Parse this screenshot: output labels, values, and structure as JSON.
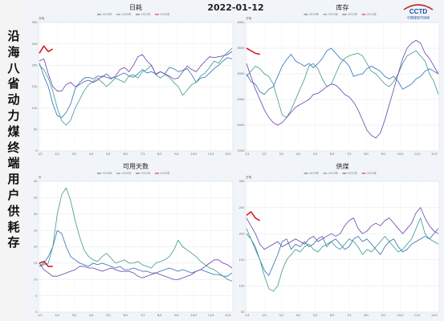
{
  "side_title": "沿海八省动力煤终端用户供耗存",
  "date": "2022-01-12",
  "logo": {
    "text": "CCTD",
    "subtext": "中国煤炭市场网"
  },
  "colors": {
    "2019": "#2f6fb5",
    "2020": "#3a9a8a",
    "2021": "#6a3fa8",
    "2022": "#d62020"
  },
  "chart_data": [
    {
      "type": "line",
      "title": "日耗",
      "unit": "万吨",
      "x_ticks": [
        "1/1",
        "2/1",
        "3/1",
        "4/1",
        "5/1",
        "6/1",
        "7/1",
        "8/1",
        "9/1",
        "10/1",
        "11/1",
        "12/1"
      ],
      "y_ticks": [
        "0",
        "50",
        "100",
        "150",
        "200",
        "250",
        "300"
      ],
      "ylim": [
        0,
        300
      ],
      "grid": true,
      "legend": [
        "2019年",
        "2020年",
        "2021年",
        "2022年"
      ],
      "series": [
        {
          "name": "2019年",
          "values": [
            205,
            175,
            150,
            110,
            82,
            78,
            90,
            110,
            145,
            160,
            170,
            172,
            168,
            175,
            172,
            180,
            170,
            172,
            178,
            182,
            175,
            172,
            180,
            190,
            182,
            185,
            180,
            185,
            180,
            195,
            192,
            185,
            188,
            192,
            178,
            160,
            170,
            172,
            182,
            192,
            200,
            210,
            218,
            215
          ]
        },
        {
          "name": "2020年",
          "values": [
            200,
            190,
            170,
            140,
            100,
            70,
            60,
            72,
            100,
            120,
            140,
            155,
            162,
            170,
            160,
            150,
            160,
            170,
            165,
            160,
            175,
            178,
            170,
            185,
            190,
            200,
            178,
            170,
            178,
            172,
            160,
            150,
            130,
            142,
            155,
            160,
            175,
            182,
            195,
            210,
            205,
            220,
            230,
            240
          ]
        },
        {
          "name": "2021年",
          "values": [
            210,
            215,
            180,
            150,
            140,
            140,
            155,
            160,
            150,
            155,
            162,
            165,
            160,
            165,
            175,
            172,
            168,
            175,
            190,
            195,
            185,
            200,
            220,
            225,
            210,
            200,
            178,
            185,
            180,
            175,
            168,
            170,
            185,
            198,
            190,
            185,
            198,
            210,
            220,
            218,
            220,
            222,
            225,
            232
          ]
        },
        {
          "name": "2022年",
          "values": [
            228,
            245,
            232,
            238
          ]
        }
      ]
    },
    {
      "type": "line",
      "title": "库存",
      "unit": "万吨",
      "x_ticks": [
        "1/1",
        "2/1",
        "3/1",
        "4/1",
        "5/1",
        "6/1",
        "7/1",
        "8/1",
        "9/1",
        "10/1",
        "11/1",
        "12/1"
      ],
      "y_ticks": [
        "1500",
        "2000",
        "2500",
        "3000",
        "3500",
        "4000"
      ],
      "ylim": [
        1500,
        4000
      ],
      "grid": true,
      "legend": [
        "2019年",
        "2020年",
        "2021年",
        "2022年"
      ],
      "series": [
        {
          "name": "2019年",
          "values": [
            3000,
            2850,
            2800,
            2650,
            2600,
            2700,
            2750,
            2950,
            3150,
            3280,
            3380,
            3250,
            3200,
            3150,
            3200,
            3120,
            3200,
            3300,
            3450,
            3500,
            3400,
            3300,
            3250,
            3150,
            2950,
            2980,
            3000,
            3100,
            3150,
            3100,
            3050,
            2950,
            2900,
            2950,
            2850,
            2700,
            2750,
            2800,
            2900,
            2950,
            3050,
            3100,
            3050,
            3000
          ]
        },
        {
          "name": "2020年",
          "values": [
            2950,
            3050,
            3150,
            3100,
            3000,
            2950,
            2800,
            2500,
            2200,
            2150,
            2300,
            2500,
            2700,
            2900,
            3150,
            3200,
            3100,
            2900,
            2750,
            2800,
            3000,
            3200,
            3300,
            3350,
            3380,
            3400,
            3350,
            3200,
            3050,
            3000,
            2900,
            2800,
            2750,
            2850,
            3000,
            3200,
            3350,
            3400,
            3450,
            3350,
            3250,
            3000,
            2850,
            2600
          ]
        },
        {
          "name": "2021年",
          "values": [
            3200,
            2950,
            2700,
            2500,
            2300,
            2150,
            2050,
            2000,
            2050,
            2150,
            2250,
            2350,
            2400,
            2450,
            2500,
            2600,
            2620,
            2680,
            2750,
            2800,
            2780,
            2700,
            2600,
            2550,
            2450,
            2300,
            2100,
            1900,
            1800,
            1750,
            1850,
            2100,
            2400,
            2700,
            3000,
            3300,
            3500,
            3600,
            3650,
            3600,
            3400,
            3300,
            3150,
            3000
          ]
        },
        {
          "name": "2022年",
          "values": [
            3500,
            3450,
            3400,
            3380
          ]
        }
      ]
    },
    {
      "type": "line",
      "title": "可用天数",
      "unit": "天",
      "x_ticks": [
        "1/1",
        "2/1",
        "3/1",
        "4/1",
        "5/1",
        "6/1",
        "7/1",
        "8/1",
        "9/1",
        "10/1",
        "11/1",
        "12/1"
      ],
      "y_ticks": [
        "0",
        "5",
        "10",
        "15",
        "20",
        "25",
        "30",
        "35",
        "40"
      ],
      "ylim": [
        0,
        40
      ],
      "grid": true,
      "legend": [
        "2019年",
        "2020年",
        "2021年",
        "2022年"
      ],
      "series": [
        {
          "name": "2019年",
          "values": [
            14,
            15,
            17,
            20,
            25,
            24,
            20,
            17,
            16,
            15,
            14.5,
            14,
            15,
            14.5,
            15,
            14.5,
            14,
            13.5,
            14,
            13,
            13,
            13.5,
            13,
            12.5,
            12.5,
            12,
            12,
            12.5,
            13,
            13.5,
            13,
            12.5,
            13,
            12.5,
            12,
            12.5,
            13,
            12.5,
            12,
            11.5,
            11.5,
            11,
            11,
            12
          ]
        },
        {
          "name": "2020年",
          "values": [
            14,
            14.5,
            15,
            20,
            30,
            36,
            38,
            34,
            28,
            23,
            19,
            17,
            16,
            15.5,
            17,
            18,
            16.5,
            15,
            15.5,
            16,
            15,
            15,
            15.5,
            14.5,
            14,
            13.5,
            15,
            15.5,
            16,
            17,
            19,
            22,
            20,
            19,
            18,
            17,
            15.5,
            14.5,
            13.5,
            13,
            12,
            11,
            10,
            9.5
          ]
        },
        {
          "name": "2021年",
          "values": [
            15,
            13,
            12,
            11,
            11,
            11.5,
            12,
            12.5,
            13,
            14,
            14,
            13.5,
            13.5,
            13,
            12.5,
            13,
            13.5,
            13,
            12.5,
            12.5,
            12.5,
            12,
            11,
            10.5,
            11,
            11.5,
            12,
            11.5,
            11,
            10.5,
            10,
            10,
            10.5,
            11,
            11.5,
            12.5,
            13,
            14,
            15,
            16,
            16,
            15,
            14.5,
            13.5
          ]
        },
        {
          "name": "2022年",
          "values": [
            15,
            15.5,
            14,
            14
          ]
        }
      ]
    },
    {
      "type": "line",
      "title": "供煤",
      "unit": "万吨",
      "x_ticks": [
        "1/1",
        "2/1",
        "3/1",
        "4/1",
        "5/1",
        "6/1",
        "7/1",
        "8/1",
        "9/1",
        "10/1",
        "11/1",
        "12/1"
      ],
      "y_ticks": [
        "50",
        "100",
        "150",
        "200",
        "250",
        "300"
      ],
      "ylim": [
        50,
        300
      ],
      "grid": true,
      "legend": [
        "2019年",
        "2020年",
        "2021年",
        "2022年"
      ],
      "series": [
        {
          "name": "2019年",
          "values": [
            200,
            190,
            170,
            150,
            130,
            120,
            140,
            160,
            185,
            190,
            170,
            180,
            175,
            185,
            175,
            180,
            190,
            195,
            175,
            185,
            190,
            180,
            170,
            175,
            190,
            195,
            185,
            190,
            180,
            170,
            160,
            175,
            185,
            190,
            175,
            165,
            170,
            180,
            185,
            190,
            195,
            190,
            200,
            210
          ]
        },
        {
          "name": "2020年",
          "values": [
            210,
            190,
            175,
            150,
            120,
            95,
            90,
            100,
            130,
            150,
            160,
            170,
            165,
            175,
            180,
            170,
            165,
            175,
            180,
            185,
            175,
            170,
            180,
            190,
            185,
            175,
            160,
            170,
            165,
            175,
            185,
            195,
            185,
            175,
            165,
            170,
            180,
            190,
            210,
            230,
            200,
            190,
            185,
            180
          ]
        },
        {
          "name": "2021年",
          "values": [
            230,
            215,
            200,
            180,
            170,
            175,
            180,
            185,
            175,
            180,
            185,
            190,
            185,
            180,
            190,
            195,
            185,
            190,
            195,
            200,
            195,
            200,
            215,
            225,
            230,
            210,
            200,
            205,
            215,
            220,
            215,
            225,
            230,
            220,
            210,
            200,
            210,
            220,
            240,
            250,
            230,
            215,
            205,
            200
          ]
        },
        {
          "name": "2022年",
          "values": [
            235,
            242,
            230,
            225
          ]
        }
      ]
    }
  ]
}
